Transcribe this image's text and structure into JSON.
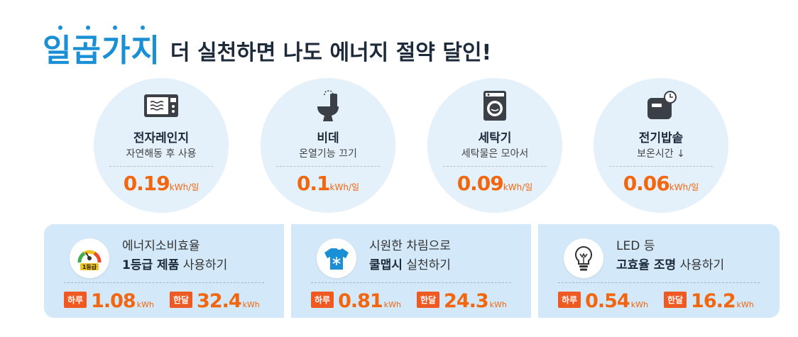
{
  "title": {
    "accent": "일곱가지",
    "rest": "더 실천하면 나도 에너지 절약 달인!"
  },
  "colors": {
    "accent_blue": "#1a8fd6",
    "value_orange": "#f2660f",
    "badge_orange": "#ef5a23",
    "circle_bg": "#e4f0fa",
    "panel_bg": "#d3e8f8"
  },
  "appliances": [
    {
      "icon": "microwave-icon",
      "name": "전자레인지",
      "desc": "자연해동 후 사용",
      "value": "0.19",
      "unit": "kWh/일"
    },
    {
      "icon": "toilet-bidet-icon",
      "name": "비데",
      "desc": "온열기능 끄기",
      "value": "0.1",
      "unit": "kWh/일"
    },
    {
      "icon": "washing-machine-icon",
      "name": "세탁기",
      "desc": "세탁물은 모아서",
      "value": "0.09",
      "unit": "kWh/일"
    },
    {
      "icon": "rice-cooker-icon",
      "name": "전기밥솥",
      "desc": "보온시간 ↓",
      "value": "0.06",
      "unit": "kWh/일"
    }
  ],
  "tips": [
    {
      "icon": "efficiency-grade-gauge-icon",
      "icon_label": "1등급",
      "line1": "에너지소비효율",
      "line2_bold": "1등급 제품",
      "line2_rest": " 사용하기",
      "day_label": "하루",
      "day_value": "1.08",
      "day_unit": "kWh",
      "month_label": "한달",
      "month_value": "32.4",
      "month_unit": "kWh"
    },
    {
      "icon": "cool-shirt-icon",
      "line1": "시원한 차림으로",
      "line2_bold": "쿨맵시",
      "line2_rest": " 실천하기",
      "day_label": "하루",
      "day_value": "0.81",
      "day_unit": "kWh",
      "month_label": "한달",
      "month_value": "24.3",
      "month_unit": "kWh"
    },
    {
      "icon": "led-bulb-icon",
      "line1": "LED 등",
      "line2_bold": "고효율 조명",
      "line2_rest": " 사용하기",
      "day_label": "하루",
      "day_value": "0.54",
      "day_unit": "kWh",
      "month_label": "한달",
      "month_value": "16.2",
      "month_unit": "kWh"
    }
  ]
}
